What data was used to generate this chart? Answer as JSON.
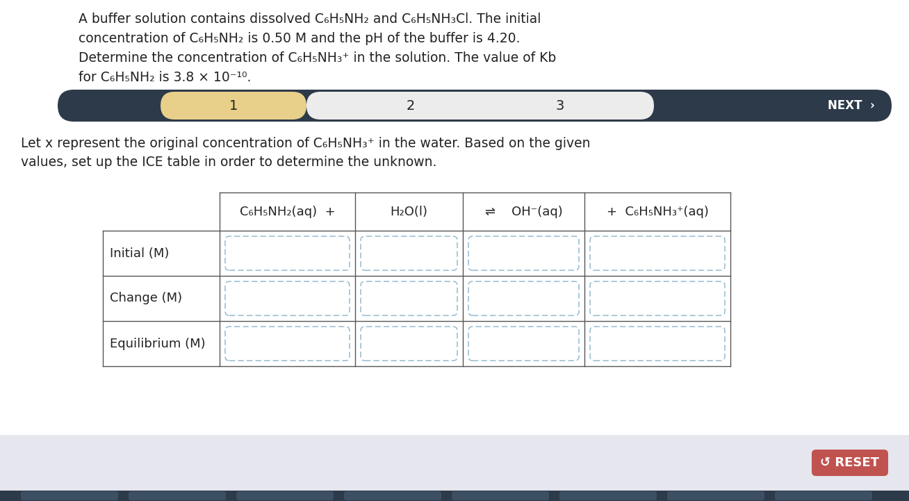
{
  "bg_color": "#ffffff",
  "bottom_bar_color": "#e6e6ee",
  "nav_bar_color": "#2d3a4a",
  "nav_bar_highlight": "#e8d08a",
  "nav_bar_mid": "#ececec",
  "title_lines": [
    "A buffer solution contains dissolved C₆H₅NH₂ and C₆H₅NH₃Cl. The initial",
    "concentration of C₆H₅NH₂ is 0.50 M and the pH of the buffer is 4.20.",
    "Determine the concentration of C₆H₅NH₃⁺ in the solution. The value of Kb",
    "for C₆H₅NH₂ is 3.8 × 10⁻¹⁰."
  ],
  "instruction_lines": [
    "Let x represent the original concentration of C₆H₅NH₃⁺ in the water. Based on the given",
    "values, set up the ICE table in order to determine the unknown."
  ],
  "col_headers": [
    "C₆H₅NH₂(aq)  +",
    "H₂O(l)",
    "⇌    OH⁻(aq)",
    "+  C₆H₅NH₃⁺(aq)"
  ],
  "row_labels": [
    "Initial (M)",
    "Change (M)",
    "Equilibrium (M)"
  ],
  "reset_color": "#c0534f",
  "reset_text": "↺ RESET",
  "cell_border_color": "#8ab4cc",
  "table_line_color": "#555555",
  "font_color": "#222222",
  "white": "#ffffff"
}
